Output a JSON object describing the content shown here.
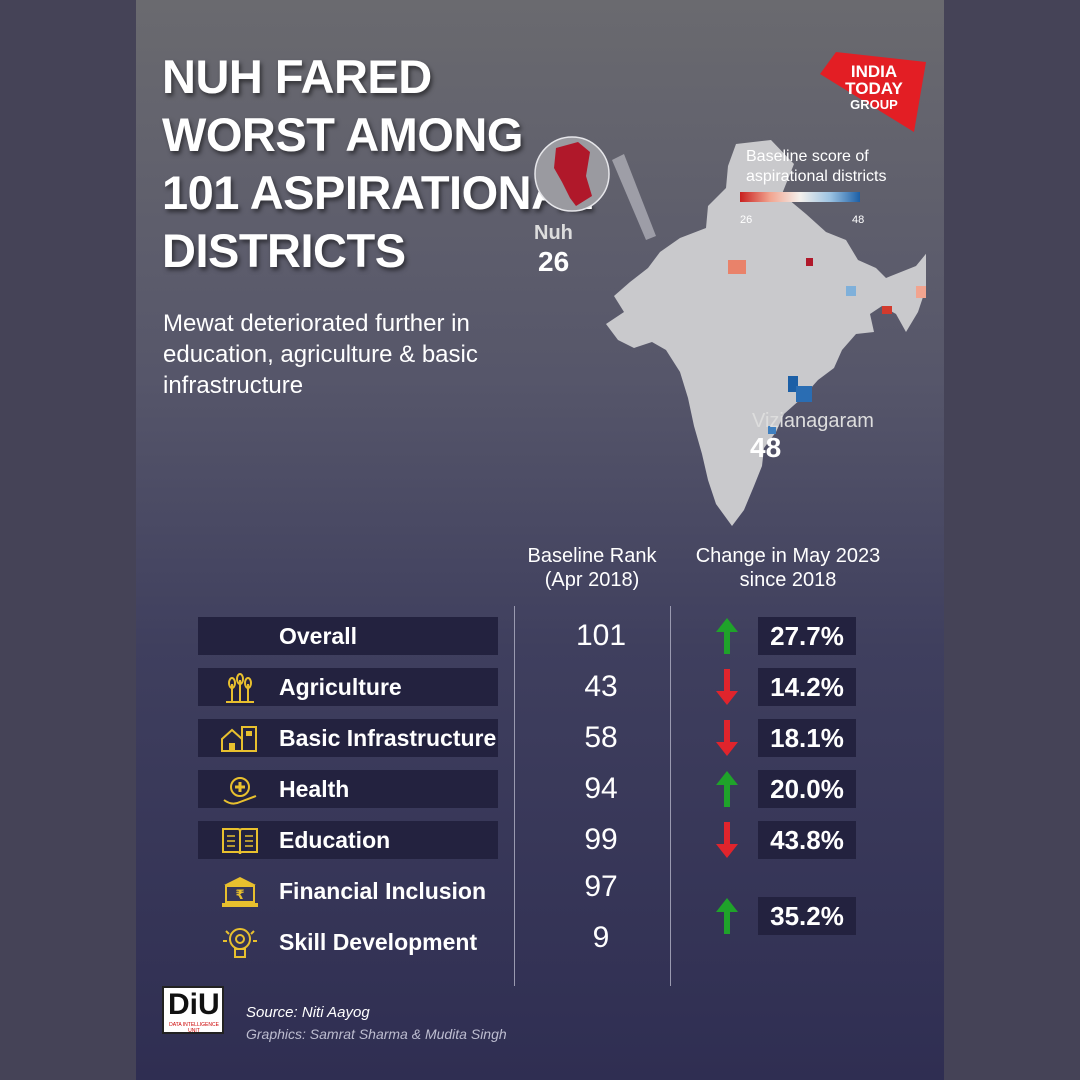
{
  "title": "NUH FARED WORST AMONG 101 ASPIRATIONAL DISTRICTS",
  "subtitle": "Mewat deteriorated further in education, agriculture & basic infrastructure",
  "logo": {
    "line1": "INDIA",
    "line2": "TODAY",
    "line3": "GROUP",
    "color": "#e31e24"
  },
  "map_legend": {
    "title": "Baseline score of aspirational districts",
    "min": "26",
    "max": "48",
    "low_color": "#c8201f",
    "high_color": "#1c5fa6"
  },
  "callouts": [
    {
      "name": "Nuh",
      "value": "26"
    },
    {
      "name": "Vizianagaram",
      "value": "48"
    }
  ],
  "table": {
    "col1_header": "Baseline Rank (Apr 2018)",
    "col2_header": "Change in May 2023 since 2018"
  },
  "chart_data": {
    "type": "table",
    "columns": [
      "Baseline Rank (Apr 2018)",
      "Change in May 2023 since 2018"
    ],
    "rows": [
      {
        "label": "Overall",
        "icon": "none",
        "rank": "101",
        "change": "27.7%",
        "direction": "up"
      },
      {
        "label": "Agriculture",
        "icon": "wheat-icon",
        "rank": "43",
        "change": "14.2%",
        "direction": "down"
      },
      {
        "label": "Basic Infrastructure",
        "icon": "house-building-icon",
        "rank": "58",
        "change": "18.1%",
        "direction": "down"
      },
      {
        "label": "Health",
        "icon": "hand-medical-cross-icon",
        "rank": "94",
        "change": "20.0%",
        "direction": "up"
      },
      {
        "label": "Education",
        "icon": "open-book-icon",
        "rank": "99",
        "change": "43.8%",
        "direction": "down"
      },
      {
        "label": "Financial Inclusion",
        "icon": "bank-rupee-icon",
        "rank": "97",
        "change": "35.2%",
        "direction": "up",
        "change_shared_with": "Skill Development"
      },
      {
        "label": "Skill Development",
        "icon": "lightbulb-gear-icon",
        "rank": "9",
        "change": "35.2%",
        "direction": "up",
        "change_shared_with": "Financial Inclusion"
      }
    ],
    "up_color": "#1fa32a",
    "down_color": "#e0242c"
  },
  "footer": {
    "badge": "DiU",
    "badge_sub": "DATA INTELLIGENCE UNIT",
    "source": "Source: Niti Aayog",
    "credit": "Graphics: Samrat Sharma & Mudita Singh"
  }
}
